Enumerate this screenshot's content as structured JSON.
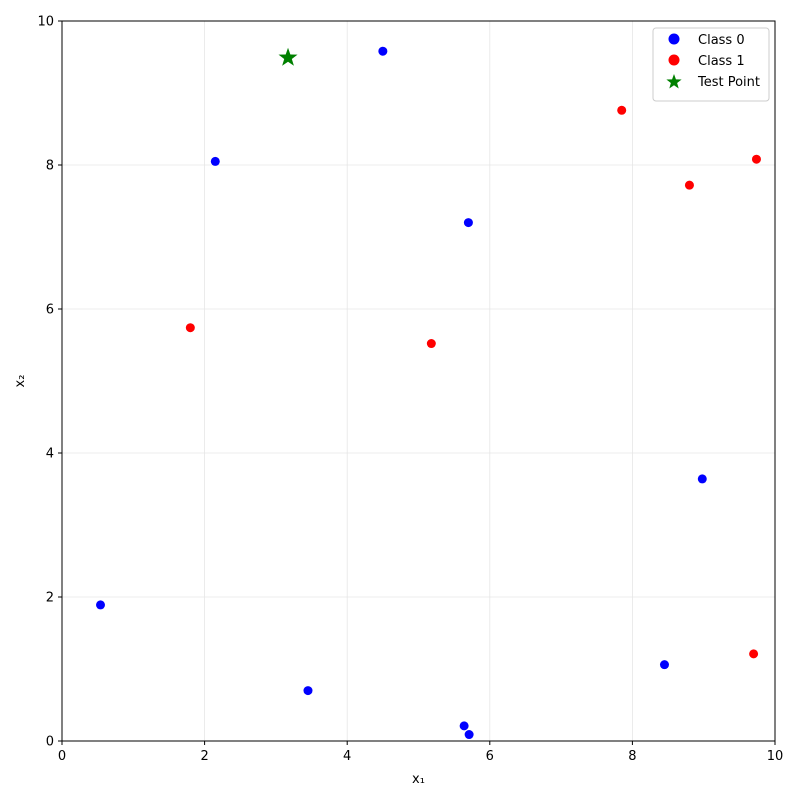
{
  "chart_data": {
    "type": "scatter",
    "xlabel": "x₁",
    "ylabel": "x₂",
    "xlim": [
      0,
      10
    ],
    "ylim": [
      0,
      10
    ],
    "xticks": [
      0,
      2,
      4,
      6,
      8,
      10
    ],
    "yticks": [
      0,
      2,
      4,
      6,
      8,
      10
    ],
    "grid": true,
    "legend_position": "top-right",
    "series": [
      {
        "name": "Class 0",
        "color": "#0000ff",
        "marker": "circle",
        "points": [
          [
            4.5,
            9.58
          ],
          [
            2.15,
            8.05
          ],
          [
            5.7,
            7.2
          ],
          [
            8.98,
            3.64
          ],
          [
            0.54,
            1.89
          ],
          [
            3.45,
            0.7
          ],
          [
            8.45,
            1.06
          ],
          [
            5.64,
            0.21
          ],
          [
            5.71,
            0.09
          ]
        ]
      },
      {
        "name": "Class 1",
        "color": "#ff0000",
        "marker": "circle",
        "points": [
          [
            7.85,
            8.76
          ],
          [
            9.74,
            8.08
          ],
          [
            8.8,
            7.72
          ],
          [
            1.8,
            5.74
          ],
          [
            5.18,
            5.52
          ],
          [
            9.7,
            1.21
          ]
        ]
      },
      {
        "name": "Test Point",
        "color": "#008000",
        "marker": "star",
        "points": [
          [
            3.17,
            9.49
          ]
        ]
      }
    ]
  }
}
